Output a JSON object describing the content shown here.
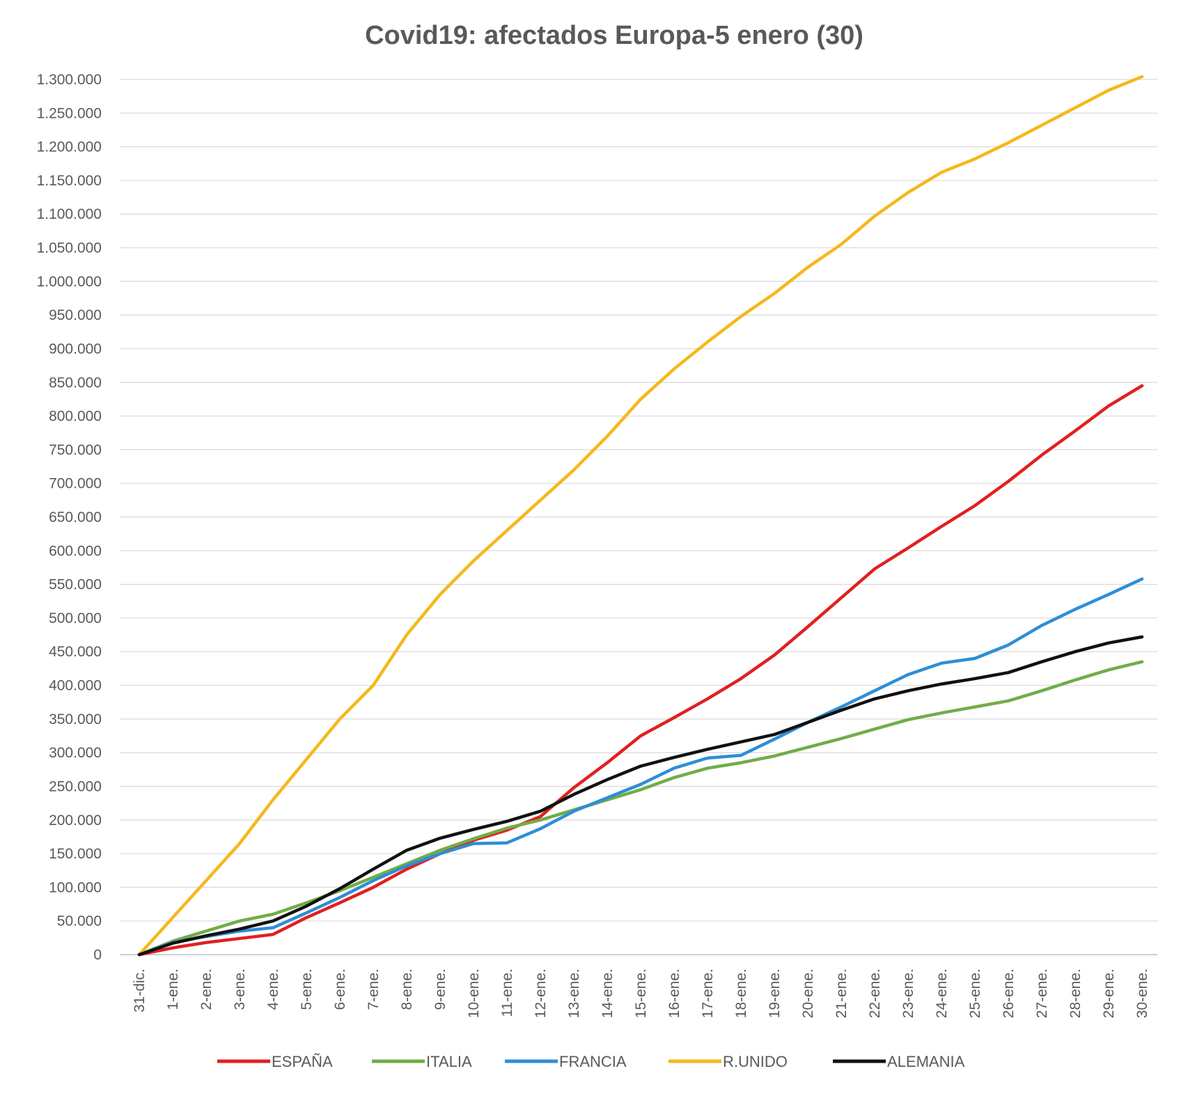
{
  "chart_data": {
    "type": "line",
    "title": "Covid19: afectados Europa-5 enero (30)",
    "xlabel": "",
    "ylabel": "",
    "ylim": [
      0,
      1300000
    ],
    "y_ticks": [
      "0",
      "50.000",
      "100.000",
      "150.000",
      "200.000",
      "250.000",
      "300.000",
      "350.000",
      "400.000",
      "450.000",
      "500.000",
      "550.000",
      "600.000",
      "650.000",
      "700.000",
      "750.000",
      "800.000",
      "850.000",
      "900.000",
      "950.000",
      "1.000.000",
      "1.050.000",
      "1.100.000",
      "1.150.000",
      "1.200.000",
      "1.250.000",
      "1.300.000"
    ],
    "grid": true,
    "legend_position": "bottom",
    "categories": [
      "31-dic.",
      "1-ene.",
      "2-ene.",
      "3-ene.",
      "4-ene.",
      "5-ene.",
      "6-ene.",
      "7-ene.",
      "8-ene.",
      "9-ene.",
      "10-ene.",
      "11-ene.",
      "12-ene.",
      "13-ene.",
      "14-ene.",
      "15-ene.",
      "16-ene.",
      "17-ene.",
      "18-ene.",
      "19-ene.",
      "20-ene.",
      "21-ene.",
      "22-ene.",
      "23-ene.",
      "24-ene.",
      "25-ene.",
      "26-ene.",
      "27-ene.",
      "28-ene.",
      "29-ene.",
      "30-ene."
    ],
    "series": [
      {
        "name": "ESPAÑA",
        "color": "#e02020",
        "values": [
          0,
          10000,
          18000,
          24000,
          30000,
          55000,
          77000,
          100000,
          127000,
          150000,
          170000,
          185000,
          205000,
          248000,
          285000,
          325000,
          352000,
          380000,
          410000,
          445000,
          487000,
          530000,
          573000,
          604000,
          636000,
          667000,
          703000,
          742000,
          778000,
          815000,
          845000
        ]
      },
      {
        "name": "ITALIA",
        "color": "#70ad47",
        "values": [
          0,
          20000,
          35000,
          50000,
          60000,
          77000,
          95000,
          115000,
          135000,
          155000,
          172000,
          188000,
          200000,
          215000,
          230000,
          245000,
          263000,
          277000,
          285000,
          295000,
          308000,
          321000,
          335000,
          349000,
          359000,
          368000,
          377000,
          392000,
          408000,
          423000,
          435000
        ]
      },
      {
        "name": "FRANCIA",
        "color": "#2e8ed6",
        "values": [
          0,
          18000,
          27000,
          35000,
          40000,
          62000,
          85000,
          110000,
          132000,
          150000,
          165000,
          166000,
          187000,
          213000,
          233000,
          253000,
          277000,
          292000,
          296000,
          320000,
          345000,
          368000,
          392000,
          416000,
          433000,
          440000,
          460000,
          489000,
          513000,
          535000,
          558000
        ]
      },
      {
        "name": "R.UNIDO",
        "color": "#f5b81c",
        "values": [
          0,
          55000,
          110000,
          165000,
          230000,
          290000,
          350000,
          400000,
          475000,
          535000,
          585000,
          630000,
          675000,
          720000,
          770000,
          825000,
          870000,
          910000,
          948000,
          982000,
          1021000,
          1055000,
          1097000,
          1132000,
          1162000,
          1182000,
          1206000,
          1232000,
          1258000,
          1284000,
          1304000
        ]
      },
      {
        "name": "ALEMANIA",
        "color": "#111111",
        "values": [
          0,
          17000,
          28000,
          38000,
          50000,
          72000,
          98000,
          127000,
          155000,
          173000,
          186000,
          198000,
          213000,
          238000,
          260000,
          280000,
          293000,
          305000,
          316000,
          327000,
          345000,
          363000,
          380000,
          392000,
          402000,
          410000,
          419000,
          435000,
          450000,
          463000,
          472000
        ]
      }
    ]
  }
}
